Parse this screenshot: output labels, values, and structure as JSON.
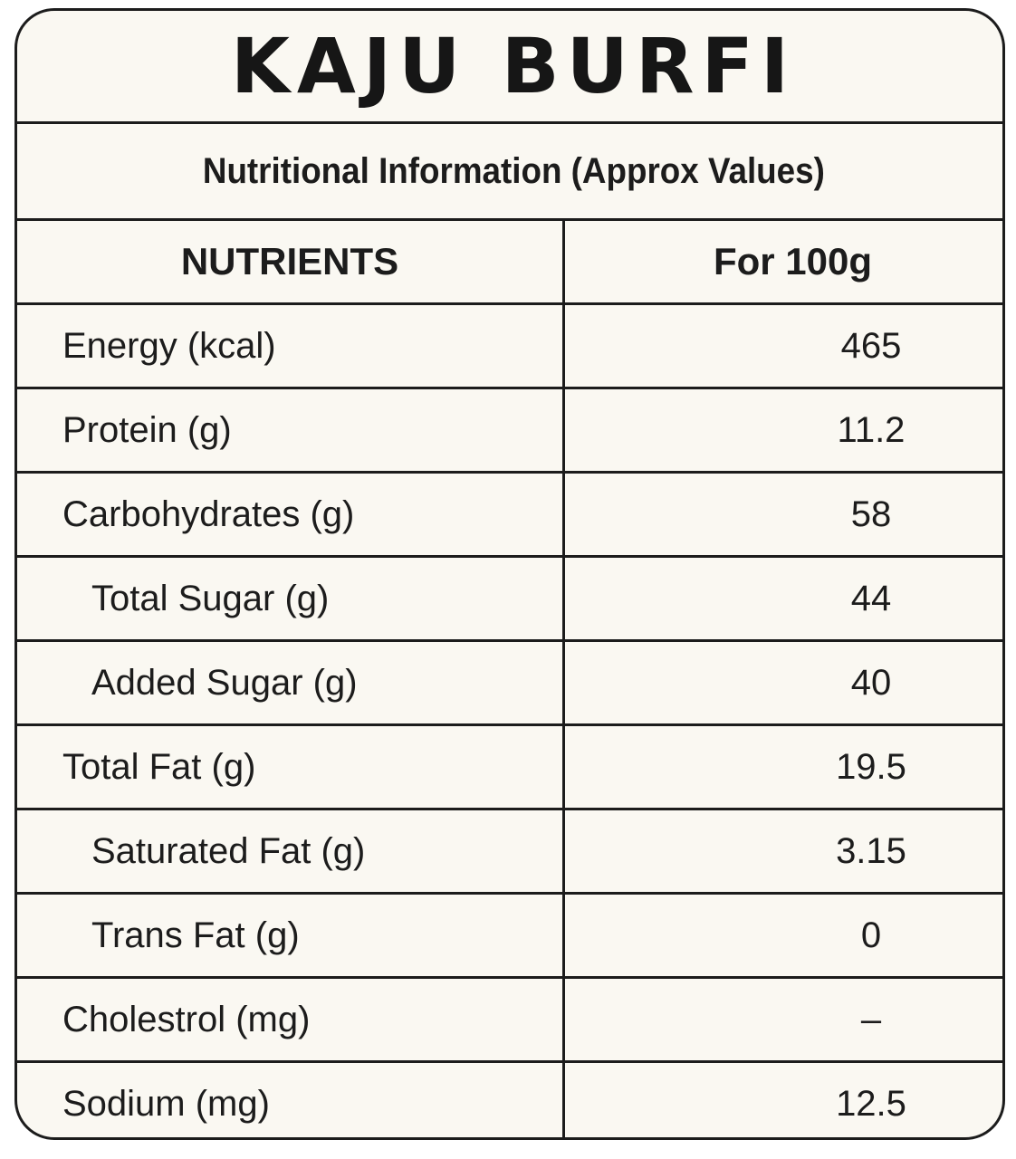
{
  "label": {
    "title": "KAJU BURFI",
    "subtitle": "Nutritional Information (Approx Values)",
    "columns": {
      "nutrient": "NUTRIENTS",
      "amount": "For 100g"
    },
    "rows": [
      {
        "name": "Energy (kcal)",
        "value": "465"
      },
      {
        "name": "Protein (g)",
        "value": "11.2"
      },
      {
        "name": "Carbohydrates (g)",
        "value": "58"
      },
      {
        "name": "Total Sugar (g)",
        "value": "44"
      },
      {
        "name": "Added Sugar (g)",
        "value": "40"
      },
      {
        "name": "Total Fat (g)",
        "value": "19.5"
      },
      {
        "name": "Saturated Fat (g)",
        "value": "3.15"
      },
      {
        "name": "Trans Fat (g)",
        "value": "0"
      },
      {
        "name": "Cholestrol (mg)",
        "value": "–"
      },
      {
        "name": "Sodium (mg)",
        "value": "12.5"
      }
    ]
  }
}
